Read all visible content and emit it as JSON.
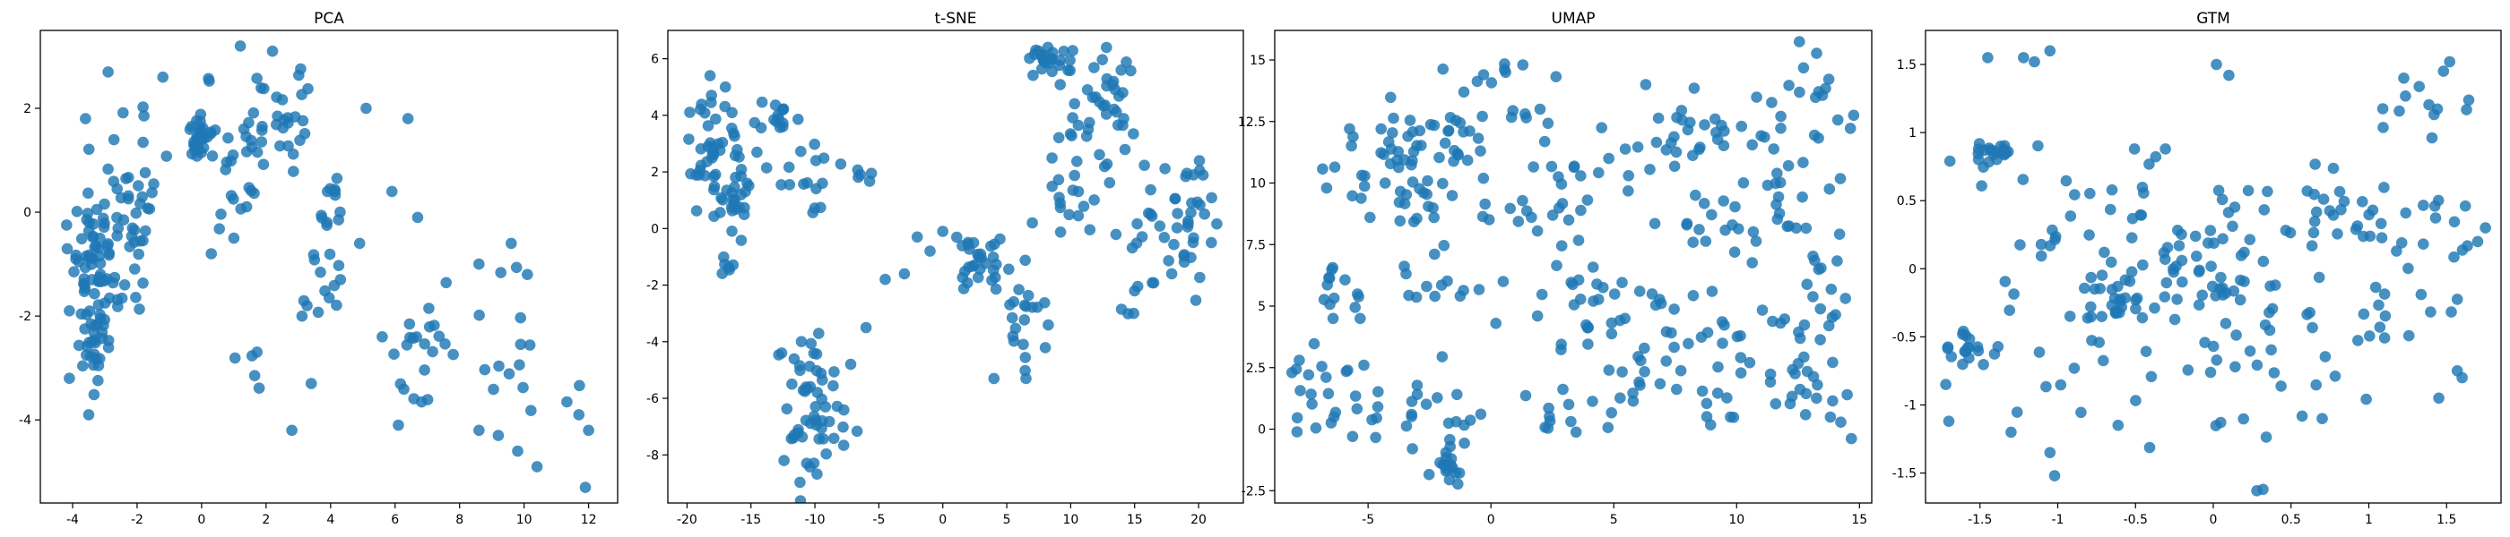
{
  "chart_data": [
    {
      "type": "scatter",
      "title": "PCA",
      "xlim": [
        -5,
        12.9
      ],
      "ylim": [
        -5.6,
        3.5
      ],
      "xticks": [
        -4,
        -2,
        0,
        2,
        4,
        6,
        8,
        10,
        12
      ],
      "yticks": [
        -4,
        -2,
        0,
        2
      ],
      "color": "#1f77b4",
      "clusters": [
        {
          "center": [
            -3.3,
            -1.2
          ],
          "spread": [
            0.35,
            0.8
          ],
          "n": 70
        },
        {
          "center": [
            -2.2,
            0.2
          ],
          "spread": [
            0.5,
            0.8
          ],
          "n": 45
        },
        {
          "center": [
            -3.4,
            -2.5
          ],
          "spread": [
            0.25,
            0.4
          ],
          "n": 18
        },
        {
          "center": [
            0.0,
            1.4
          ],
          "spread": [
            0.3,
            0.25
          ],
          "n": 28
        },
        {
          "center": [
            1.2,
            1.2
          ],
          "spread": [
            0.5,
            0.9
          ],
          "n": 30
        },
        {
          "center": [
            2.8,
            1.8
          ],
          "spread": [
            0.4,
            0.6
          ],
          "n": 22
        },
        {
          "center": [
            4.0,
            0.3
          ],
          "spread": [
            0.3,
            0.3
          ],
          "n": 12
        },
        {
          "center": [
            3.8,
            -1.5
          ],
          "spread": [
            0.3,
            0.5
          ],
          "n": 14
        },
        {
          "center": [
            6.5,
            -2.8
          ],
          "spread": [
            0.4,
            0.5
          ],
          "n": 12
        },
        {
          "center": [
            7.2,
            -2.3
          ],
          "spread": [
            0.3,
            0.3
          ],
          "n": 8
        },
        {
          "center": [
            9.5,
            -3.0
          ],
          "spread": [
            1.2,
            1.0
          ],
          "n": 16
        },
        {
          "center": [
            1.5,
            -2.9
          ],
          "spread": [
            0.3,
            0.2
          ],
          "n": 5
        }
      ],
      "points": [
        [
          -4.1,
          -1.9
        ],
        [
          -3.9,
          -0.9
        ],
        [
          -2.9,
          2.7
        ],
        [
          -3.6,
          1.8
        ],
        [
          -1.2,
          2.6
        ],
        [
          2.2,
          3.1
        ],
        [
          1.2,
          3.2
        ],
        [
          5.1,
          2.0
        ],
        [
          6.4,
          1.8
        ],
        [
          4.9,
          -0.6
        ],
        [
          5.9,
          0.4
        ],
        [
          6.7,
          -0.1
        ],
        [
          8.6,
          -1.0
        ],
        [
          9.6,
          -0.6
        ],
        [
          10.1,
          -1.2
        ],
        [
          11.7,
          -3.9
        ],
        [
          12.0,
          -4.2
        ],
        [
          11.9,
          -5.3
        ],
        [
          10.4,
          -4.9
        ],
        [
          8.6,
          -4.2
        ],
        [
          9.2,
          -4.3
        ],
        [
          9.8,
          -4.6
        ],
        [
          5.6,
          -2.4
        ],
        [
          6.1,
          -4.1
        ],
        [
          2.8,
          -4.2
        ],
        [
          3.4,
          -3.3
        ],
        [
          -3.5,
          -3.9
        ],
        [
          -4.1,
          -3.2
        ],
        [
          0.3,
          -0.8
        ],
        [
          1.0,
          -0.5
        ]
      ]
    },
    {
      "type": "scatter",
      "title": "t-SNE",
      "xlim": [
        -21.5,
        23.5
      ],
      "ylim": [
        -9.7,
        7.0
      ],
      "xticks": [
        -20,
        -15,
        -10,
        -5,
        0,
        5,
        10,
        15,
        20
      ],
      "yticks": [
        -8,
        -6,
        -4,
        -2,
        0,
        2,
        4,
        6
      ],
      "color": "#1f77b4",
      "clusters": [
        {
          "center": [
            -17.5,
            2.6
          ],
          "spread": [
            1.6,
            1.0
          ],
          "n": 50
        },
        {
          "center": [
            -16.0,
            1.2
          ],
          "spread": [
            0.7,
            0.7
          ],
          "n": 18
        },
        {
          "center": [
            -13.2,
            3.9
          ],
          "spread": [
            1.2,
            0.3
          ],
          "n": 14
        },
        {
          "center": [
            -9.8,
            2.4
          ],
          "spread": [
            1.2,
            0.9
          ],
          "n": 14
        },
        {
          "center": [
            -6.0,
            2.0
          ],
          "spread": [
            0.7,
            0.2
          ],
          "n": 6
        },
        {
          "center": [
            -9.9,
            -6.5
          ],
          "spread": [
            1.4,
            1.2
          ],
          "n": 55
        },
        {
          "center": [
            2.8,
            -1.1
          ],
          "spread": [
            1.1,
            0.6
          ],
          "n": 30
        },
        {
          "center": [
            6.5,
            -3.3
          ],
          "spread": [
            1.3,
            1.2
          ],
          "n": 20
        },
        {
          "center": [
            8.5,
            5.9
          ],
          "spread": [
            0.9,
            0.3
          ],
          "n": 20
        },
        {
          "center": [
            10.5,
            2.5
          ],
          "spread": [
            1.3,
            2.4
          ],
          "n": 38
        },
        {
          "center": [
            13.5,
            4.5
          ],
          "spread": [
            1.0,
            1.2
          ],
          "n": 22
        },
        {
          "center": [
            16.0,
            -0.5
          ],
          "spread": [
            1.3,
            1.8
          ],
          "n": 25
        },
        {
          "center": [
            19.5,
            0.3
          ],
          "spread": [
            1.2,
            1.3
          ],
          "n": 25
        },
        {
          "center": [
            -16.8,
            -1.3
          ],
          "spread": [
            0.3,
            0.2
          ],
          "n": 6
        }
      ],
      "points": [
        [
          -18.2,
          5.4
        ],
        [
          -17.0,
          5.0
        ],
        [
          -12.5,
          4.2
        ],
        [
          -2.0,
          -0.3
        ],
        [
          -1.0,
          -0.8
        ],
        [
          0.0,
          -0.1
        ],
        [
          -3.0,
          -1.6
        ],
        [
          -4.5,
          -1.8
        ],
        [
          -6.0,
          -3.5
        ],
        [
          -7.2,
          -4.8
        ],
        [
          -12.6,
          -4.4
        ],
        [
          -11.8,
          -5.5
        ],
        [
          4.0,
          -5.3
        ],
        [
          6.5,
          -5.3
        ],
        [
          15.0,
          -2.2
        ],
        [
          17.9,
          -1.6
        ],
        [
          21.0,
          -0.5
        ],
        [
          7.0,
          0.2
        ],
        [
          12.8,
          6.4
        ]
      ]
    },
    {
      "type": "scatter",
      "title": "UMAP",
      "xlim": [
        -8.8,
        15.5
      ],
      "ylim": [
        -3.0,
        16.2
      ],
      "xticks": [
        -5,
        0,
        5,
        10,
        15
      ],
      "yticks": [
        -2.5,
        0.0,
        2.5,
        5.0,
        7.5,
        10.0,
        12.5,
        15.0
      ],
      "color": "#1f77b4",
      "clusters": [
        {
          "center": [
            -3.5,
            11.0
          ],
          "spread": [
            1.5,
            1.2
          ],
          "n": 40
        },
        {
          "center": [
            -0.5,
            12.0
          ],
          "spread": [
            1.5,
            1.5
          ],
          "n": 30
        },
        {
          "center": [
            -3.0,
            9.5
          ],
          "spread": [
            1.4,
            1.0
          ],
          "n": 22
        },
        {
          "center": [
            3.0,
            9.0
          ],
          "spread": [
            1.3,
            0.8
          ],
          "n": 18
        },
        {
          "center": [
            7.0,
            12.0
          ],
          "spread": [
            1.6,
            0.8
          ],
          "n": 20
        },
        {
          "center": [
            9.5,
            11.5
          ],
          "spread": [
            1.2,
            1.0
          ],
          "n": 14
        },
        {
          "center": [
            9.0,
            8.6
          ],
          "spread": [
            1.0,
            0.8
          ],
          "n": 16
        },
        {
          "center": [
            13.0,
            13.0
          ],
          "spread": [
            0.7,
            1.5
          ],
          "n": 20
        },
        {
          "center": [
            12.5,
            9.0
          ],
          "spread": [
            1.2,
            1.4
          ],
          "n": 20
        },
        {
          "center": [
            -5.8,
            5.8
          ],
          "spread": [
            0.8,
            0.7
          ],
          "n": 14
        },
        {
          "center": [
            -2.0,
            5.5
          ],
          "spread": [
            0.8,
            1.0
          ],
          "n": 12
        },
        {
          "center": [
            -6.5,
            1.5
          ],
          "spread": [
            1.2,
            1.2
          ],
          "n": 22
        },
        {
          "center": [
            -3.0,
            0.8
          ],
          "spread": [
            1.3,
            1.3
          ],
          "n": 28
        },
        {
          "center": [
            -1.6,
            -1.8
          ],
          "spread": [
            0.5,
            0.4
          ],
          "n": 10
        },
        {
          "center": [
            3.5,
            5.0
          ],
          "spread": [
            1.0,
            1.2
          ],
          "n": 22
        },
        {
          "center": [
            6.5,
            4.5
          ],
          "spread": [
            1.2,
            1.0
          ],
          "n": 18
        },
        {
          "center": [
            6.0,
            1.8
          ],
          "spread": [
            1.0,
            0.8
          ],
          "n": 15
        },
        {
          "center": [
            10.5,
            3.5
          ],
          "spread": [
            1.5,
            1.0
          ],
          "n": 20
        },
        {
          "center": [
            13.2,
            5.0
          ],
          "spread": [
            0.7,
            1.0
          ],
          "n": 14
        },
        {
          "center": [
            13.0,
            1.5
          ],
          "spread": [
            1.2,
            0.9
          ],
          "n": 18
        },
        {
          "center": [
            2.3,
            0.5
          ],
          "spread": [
            0.8,
            0.6
          ],
          "n": 10
        },
        {
          "center": [
            9.5,
            0.8
          ],
          "spread": [
            0.8,
            0.5
          ],
          "n": 8
        }
      ],
      "points": [
        [
          -7.8,
          2.8
        ],
        [
          -8.1,
          2.3
        ],
        [
          0.6,
          14.5
        ],
        [
          1.3,
          14.8
        ],
        [
          -0.3,
          14.4
        ],
        [
          4.8,
          11.0
        ],
        [
          5.6,
          10.3
        ],
        [
          6.3,
          14.0
        ],
        [
          0.5,
          6.0
        ],
        [
          0.2,
          4.3
        ],
        [
          9.0,
          5.6
        ],
        [
          14.5,
          1.4
        ],
        [
          2.0,
          13.0
        ]
      ]
    },
    {
      "type": "scatter",
      "title": "GTM",
      "xlim": [
        -1.85,
        1.85
      ],
      "ylim": [
        -1.72,
        1.75
      ],
      "xticks": [
        -1.5,
        -1.0,
        -0.5,
        0.0,
        0.5,
        1.0,
        1.5
      ],
      "yticks": [
        -1.5,
        -1.0,
        -0.5,
        0.0,
        0.5,
        1.0,
        1.5
      ],
      "color": "#1f77b4",
      "clusters": [
        {
          "center": [
            -1.4,
            0.88
          ],
          "spread": [
            0.06,
            0.05
          ],
          "n": 20
        },
        {
          "center": [
            -1.58,
            -0.55
          ],
          "spread": [
            0.05,
            0.06
          ],
          "n": 14
        },
        {
          "center": [
            -0.65,
            -0.2
          ],
          "spread": [
            0.12,
            0.12
          ],
          "n": 25
        },
        {
          "center": [
            -0.05,
            0.05
          ],
          "spread": [
            0.15,
            0.2
          ],
          "n": 30
        },
        {
          "center": [
            1.0,
            0.4
          ],
          "spread": [
            0.3,
            0.15
          ],
          "n": 30
        },
        {
          "center": [
            1.3,
            -0.2
          ],
          "spread": [
            0.25,
            0.35
          ],
          "n": 20
        },
        {
          "center": [
            0.2,
            -0.4
          ],
          "spread": [
            0.3,
            0.25
          ],
          "n": 20
        },
        {
          "center": [
            -1.0,
            0.2
          ],
          "spread": [
            0.35,
            0.35
          ],
          "n": 25
        },
        {
          "center": [
            -0.4,
            0.6
          ],
          "spread": [
            0.3,
            0.3
          ],
          "n": 15
        },
        {
          "center": [
            0.5,
            0.4
          ],
          "spread": [
            0.25,
            0.3
          ],
          "n": 15
        },
        {
          "center": [
            -0.3,
            -0.8
          ],
          "spread": [
            0.4,
            0.2
          ],
          "n": 12
        },
        {
          "center": [
            0.7,
            -0.8
          ],
          "spread": [
            0.3,
            0.25
          ],
          "n": 12
        },
        {
          "center": [
            1.3,
            1.2
          ],
          "spread": [
            0.15,
            0.2
          ],
          "n": 12
        },
        {
          "center": [
            -1.0,
            -0.6
          ],
          "spread": [
            0.3,
            0.3
          ],
          "n": 15
        }
      ],
      "points": [
        [
          -1.22,
          1.55
        ],
        [
          -1.15,
          1.52
        ],
        [
          -1.05,
          1.6
        ],
        [
          -1.45,
          1.55
        ],
        [
          0.02,
          1.5
        ],
        [
          0.1,
          1.42
        ],
        [
          -1.72,
          -0.85
        ],
        [
          -1.7,
          -1.12
        ],
        [
          -1.05,
          -1.35
        ],
        [
          -1.02,
          -1.52
        ],
        [
          -1.3,
          -1.2
        ],
        [
          0.28,
          -1.63
        ],
        [
          0.32,
          -1.62
        ],
        [
          0.7,
          -1.1
        ],
        [
          1.52,
          1.52
        ],
        [
          1.48,
          1.45
        ],
        [
          1.7,
          0.2
        ],
        [
          1.75,
          0.3
        ],
        [
          1.45,
          -0.95
        ],
        [
          1.6,
          -0.8
        ]
      ]
    }
  ]
}
